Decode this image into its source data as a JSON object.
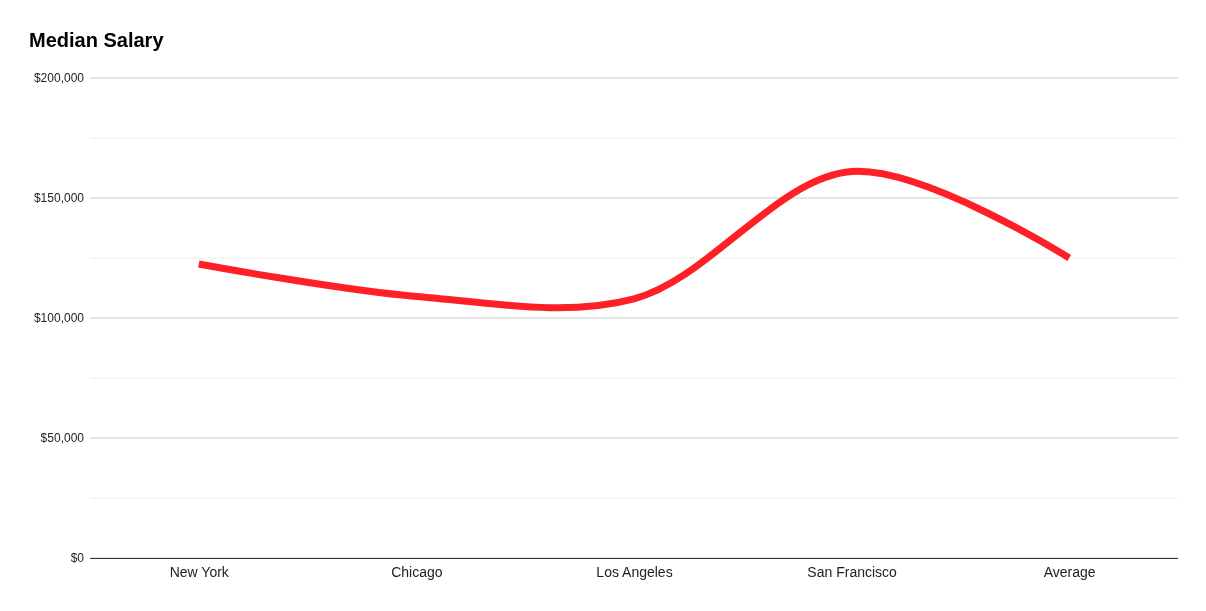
{
  "chart_data": {
    "type": "line",
    "title": "Median Salary",
    "categories": [
      "New York",
      "Chicago",
      "Los Angeles",
      "San Francisco",
      "Average"
    ],
    "series": [
      {
        "color": "#ff1f26",
        "values": [
          122500,
          109000,
          108000,
          161000,
          125000
        ]
      }
    ],
    "ylim": [
      0,
      200000
    ],
    "yticks": [
      {
        "value": 0,
        "label": "$0"
      },
      {
        "value": 25000,
        "label": null
      },
      {
        "value": 50000,
        "label": "$50,000"
      },
      {
        "value": 75000,
        "label": null
      },
      {
        "value": 100000,
        "label": "$100,000"
      },
      {
        "value": 125000,
        "label": null
      },
      {
        "value": 150000,
        "label": "$150,000"
      },
      {
        "value": 175000,
        "label": null
      },
      {
        "value": 200000,
        "label": "$200,000"
      }
    ],
    "grid": true,
    "marker": "none",
    "line_style": "solid"
  }
}
